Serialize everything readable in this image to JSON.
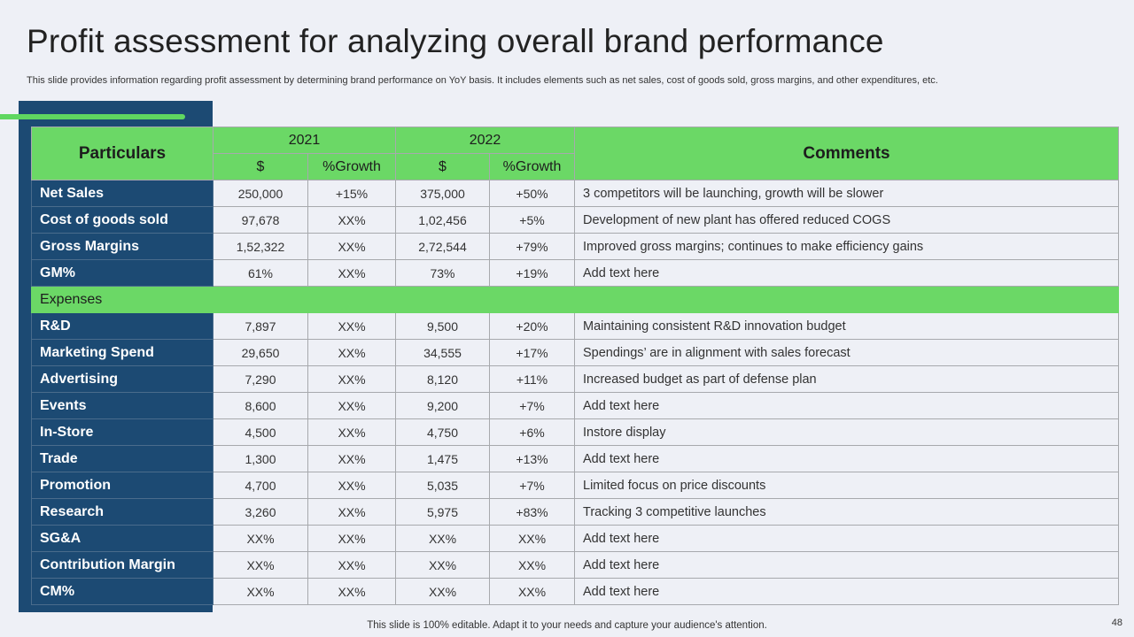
{
  "title": "Profit assessment for analyzing overall brand performance",
  "subtitle": "This slide provides information regarding profit assessment by determining brand performance on YoY basis. It includes elements such as net sales, cost of goods sold, gross margins, and other expenditures, etc.",
  "header": {
    "particulars": "Particulars",
    "year1": "2021",
    "year2": "2022",
    "comments": "Comments",
    "dollar": "$",
    "growth": "%Growth"
  },
  "rows_top": [
    {
      "label": "Net Sales",
      "v2021": "250,000",
      "g2021": "+15%",
      "v2022": "375,000",
      "g2022": "+50%",
      "comment": "3 competitors will be launching, growth will be slower"
    },
    {
      "label": "Cost of goods sold",
      "v2021": "97,678",
      "g2021": "XX%",
      "v2022": "1,02,456",
      "g2022": "+5%",
      "comment": "Development of new plant has offered  reduced COGS"
    },
    {
      "label": "Gross Margins",
      "v2021": "1,52,322",
      "g2021": "XX%",
      "v2022": "2,72,544",
      "g2022": "+79%",
      "comment": "Improved gross margins; continues to make efficiency gains"
    },
    {
      "label": "GM%",
      "v2021": "61%",
      "g2021": "XX%",
      "v2022": "73%",
      "g2022": "+19%",
      "comment": "Add text here"
    }
  ],
  "section": {
    "label": "Expenses"
  },
  "rows_bottom": [
    {
      "label": "R&D",
      "v2021": "7,897",
      "g2021": "XX%",
      "v2022": "9,500",
      "g2022": "+20%",
      "comment": "Maintaining  consistent R&D innovation budget"
    },
    {
      "label": "Marketing Spend",
      "v2021": "29,650",
      "g2021": "XX%",
      "v2022": "34,555",
      "g2022": "+17%",
      "comment": "Spendings’ are in alignment with sales forecast"
    },
    {
      "label": "Advertising",
      "v2021": "7,290",
      "g2021": "XX%",
      "v2022": "8,120",
      "g2022": "+11%",
      "comment": "Increased budget as part of defense plan"
    },
    {
      "label": "Events",
      "v2021": "8,600",
      "g2021": "XX%",
      "v2022": "9,200",
      "g2022": "+7%",
      "comment": "Add text here"
    },
    {
      "label": "In-Store",
      "v2021": "4,500",
      "g2021": "XX%",
      "v2022": "4,750",
      "g2022": "+6%",
      "comment": "Instore display"
    },
    {
      "label": "Trade",
      "v2021": "1,300",
      "g2021": "XX%",
      "v2022": "1,475",
      "g2022": "+13%",
      "comment": "Add text here"
    },
    {
      "label": "Promotion",
      "v2021": "4,700",
      "g2021": "XX%",
      "v2022": "5,035",
      "g2022": "+7%",
      "comment": "Limited focus on price discounts"
    },
    {
      "label": "Research",
      "v2021": "3,260",
      "g2021": "XX%",
      "v2022": "5,975",
      "g2022": "+83%",
      "comment": "Tracking 3 competitive launches"
    },
    {
      "label": "SG&A",
      "v2021": "XX%",
      "g2021": "XX%",
      "v2022": "XX%",
      "g2022": "XX%",
      "comment": "Add text here"
    },
    {
      "label": "Contribution Margin",
      "v2021": "XX%",
      "g2021": "XX%",
      "v2022": "XX%",
      "g2022": "XX%",
      "comment": "Add text here"
    },
    {
      "label": "CM%",
      "v2021": "XX%",
      "g2021": "XX%",
      "v2022": "XX%",
      "g2022": "XX%",
      "comment": "Add text here"
    }
  ],
  "footer": "This slide is 100% editable. Adapt it to your needs and capture your audience's attention.",
  "page_number": "48",
  "colors": {
    "navy": "#1c4a73",
    "green": "#6bd866",
    "background": "#eef0f6"
  }
}
